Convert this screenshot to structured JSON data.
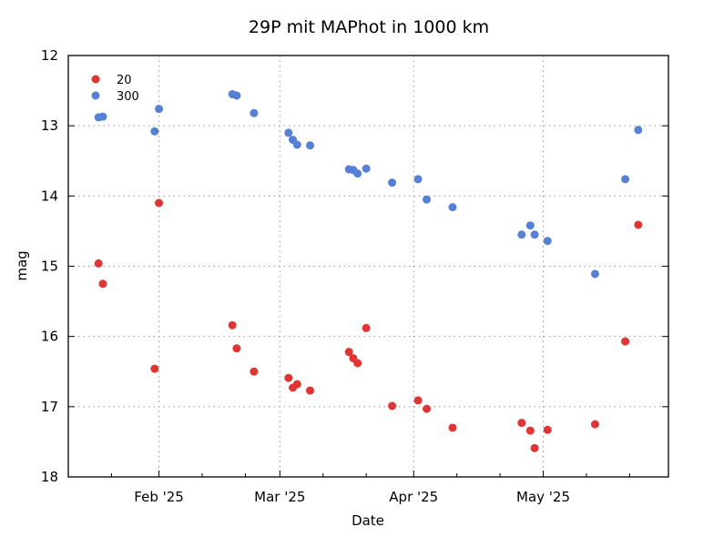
{
  "chart_data": {
    "type": "scatter",
    "title": "29P mit MAPhot in 1000 km",
    "xlabel": "Date",
    "ylabel": "mag",
    "xlim": [
      "2025-01-11",
      "2025-05-30"
    ],
    "ylim": [
      18,
      12
    ],
    "y_inverted": true,
    "grid": true,
    "legend_placement": "top-left",
    "xticks": [
      {
        "date": "2025-02-01",
        "label": "Feb '25"
      },
      {
        "date": "2025-03-01",
        "label": "Mar '25"
      },
      {
        "date": "2025-04-01",
        "label": "Apr '25"
      },
      {
        "date": "2025-05-01",
        "label": "May '25"
      }
    ],
    "yticks": [
      12,
      13,
      14,
      15,
      16,
      17,
      18
    ],
    "series": [
      {
        "name": "20",
        "color": "#e03535",
        "points": [
          [
            "2025-01-18",
            14.96
          ],
          [
            "2025-01-19",
            15.25
          ],
          [
            "2025-01-31",
            16.46
          ],
          [
            "2025-02-01",
            14.1
          ],
          [
            "2025-02-18",
            15.84
          ],
          [
            "2025-02-19",
            16.17
          ],
          [
            "2025-02-23",
            16.5
          ],
          [
            "2025-03-03",
            16.59
          ],
          [
            "2025-03-04",
            16.73
          ],
          [
            "2025-03-05",
            16.68
          ],
          [
            "2025-03-08",
            16.77
          ],
          [
            "2025-03-17",
            16.22
          ],
          [
            "2025-03-18",
            16.31
          ],
          [
            "2025-03-19",
            16.38
          ],
          [
            "2025-03-21",
            15.88
          ],
          [
            "2025-03-27",
            16.99
          ],
          [
            "2025-04-02",
            16.91
          ],
          [
            "2025-04-04",
            17.03
          ],
          [
            "2025-04-10",
            17.3
          ],
          [
            "2025-04-26",
            17.23
          ],
          [
            "2025-04-28",
            17.34
          ],
          [
            "2025-04-29",
            17.59
          ],
          [
            "2025-05-02",
            17.33
          ],
          [
            "2025-05-13",
            17.25
          ],
          [
            "2025-05-20",
            16.07
          ],
          [
            "2025-05-23",
            14.41
          ]
        ]
      },
      {
        "name": "300",
        "color": "#5580d6",
        "points": [
          [
            "2025-01-18",
            12.88
          ],
          [
            "2025-01-19",
            12.87
          ],
          [
            "2025-01-31",
            13.08
          ],
          [
            "2025-02-01",
            12.76
          ],
          [
            "2025-02-18",
            12.55
          ],
          [
            "2025-02-19",
            12.57
          ],
          [
            "2025-02-23",
            12.82
          ],
          [
            "2025-03-03",
            13.1
          ],
          [
            "2025-03-04",
            13.2
          ],
          [
            "2025-03-05",
            13.27
          ],
          [
            "2025-03-08",
            13.28
          ],
          [
            "2025-03-17",
            13.62
          ],
          [
            "2025-03-18",
            13.63
          ],
          [
            "2025-03-19",
            13.68
          ],
          [
            "2025-03-21",
            13.61
          ],
          [
            "2025-03-27",
            13.81
          ],
          [
            "2025-04-02",
            13.76
          ],
          [
            "2025-04-04",
            14.05
          ],
          [
            "2025-04-10",
            14.16
          ],
          [
            "2025-04-26",
            14.55
          ],
          [
            "2025-04-28",
            14.42
          ],
          [
            "2025-04-29",
            14.55
          ],
          [
            "2025-05-02",
            14.64
          ],
          [
            "2025-05-13",
            15.11
          ],
          [
            "2025-05-20",
            13.76
          ],
          [
            "2025-05-23",
            13.06
          ]
        ]
      }
    ]
  }
}
